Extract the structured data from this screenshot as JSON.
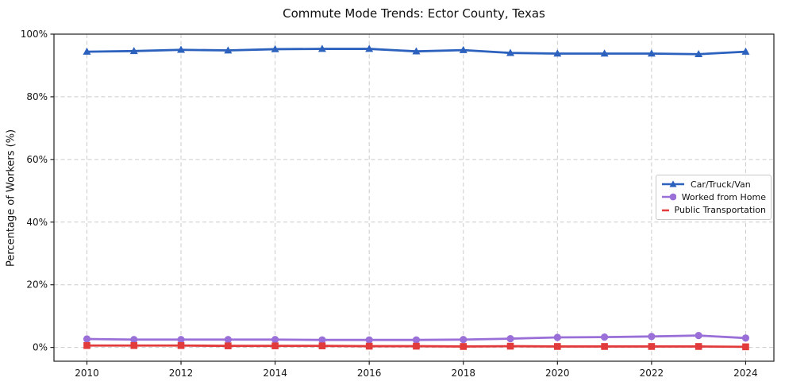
{
  "chart_data": {
    "type": "line",
    "title": "Commute Mode Trends: Ector County, Texas",
    "xlabel": "",
    "ylabel": "Percentage of Workers (%)",
    "x": [
      2010,
      2011,
      2012,
      2013,
      2014,
      2015,
      2016,
      2017,
      2018,
      2019,
      2020,
      2021,
      2022,
      2023,
      2024
    ],
    "series": [
      {
        "name": "Car/Truck/Van",
        "color": "#2c61bd",
        "marker": "triangle-up",
        "values": [
          94.4,
          94.6,
          95.0,
          94.8,
          95.2,
          95.3,
          95.3,
          94.5,
          94.9,
          94.0,
          93.8,
          93.8,
          93.8,
          93.6,
          94.4
        ]
      },
      {
        "name": "Worked from Home",
        "color": "#9a70d8",
        "marker": "circle",
        "values": [
          2.7,
          2.5,
          2.5,
          2.5,
          2.5,
          2.4,
          2.4,
          2.4,
          2.5,
          2.8,
          3.2,
          3.3,
          3.5,
          3.8,
          3.0
        ]
      },
      {
        "name": "Public Transportation",
        "color": "#e23b3b",
        "marker": "square",
        "values": [
          0.6,
          0.6,
          0.6,
          0.5,
          0.5,
          0.5,
          0.4,
          0.4,
          0.3,
          0.4,
          0.3,
          0.3,
          0.3,
          0.3,
          0.2
        ]
      }
    ],
    "xticks": [
      2010,
      2012,
      2014,
      2016,
      2018,
      2020,
      2022,
      2024
    ],
    "xtick_labels": [
      "2010",
      "2012",
      "2014",
      "2016",
      "2018",
      "2020",
      "2022",
      "2024"
    ],
    "yticks": [
      0,
      20,
      40,
      60,
      80,
      100
    ],
    "ytick_labels": [
      "0%",
      "20%",
      "40%",
      "60%",
      "80%",
      "100%"
    ],
    "xlim": [
      2009.3,
      2024.6
    ],
    "ylim": [
      -4.4,
      100
    ],
    "grid": true,
    "grid_style": "dashed",
    "legend_position": "center right",
    "colors": {
      "background": "#ffffff",
      "grid": "#cbcbcb",
      "spine": "#1f1f1f",
      "text": "#111111"
    }
  }
}
